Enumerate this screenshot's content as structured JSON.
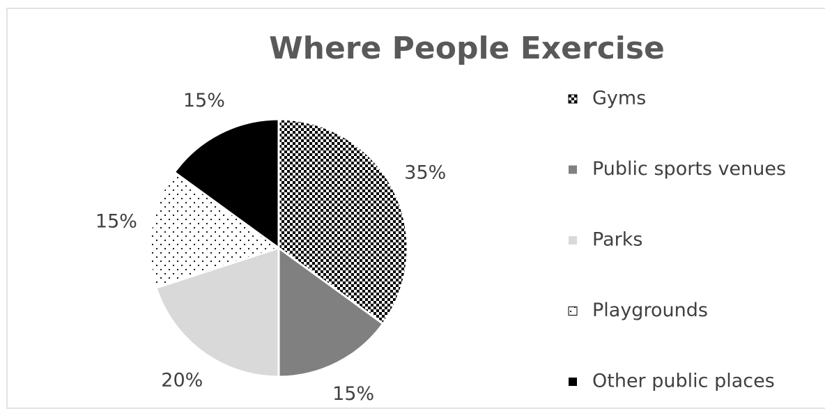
{
  "chart_data": {
    "type": "pie",
    "title": "Where People Exercise",
    "categories": [
      "Gyms",
      "Public sports venues",
      "Parks",
      "Playgrounds",
      "Other public places"
    ],
    "values": [
      35,
      15,
      20,
      15,
      15
    ],
    "value_labels": [
      "35%",
      "15%",
      "20%",
      "15%",
      "15%"
    ],
    "colors": [
      "#000000",
      "#808080",
      "#d9d9d9",
      "#ffffff",
      "#000000"
    ],
    "patterns": [
      "checkerboard",
      "solid",
      "solid",
      "dotted",
      "solid"
    ],
    "legend": "right"
  }
}
